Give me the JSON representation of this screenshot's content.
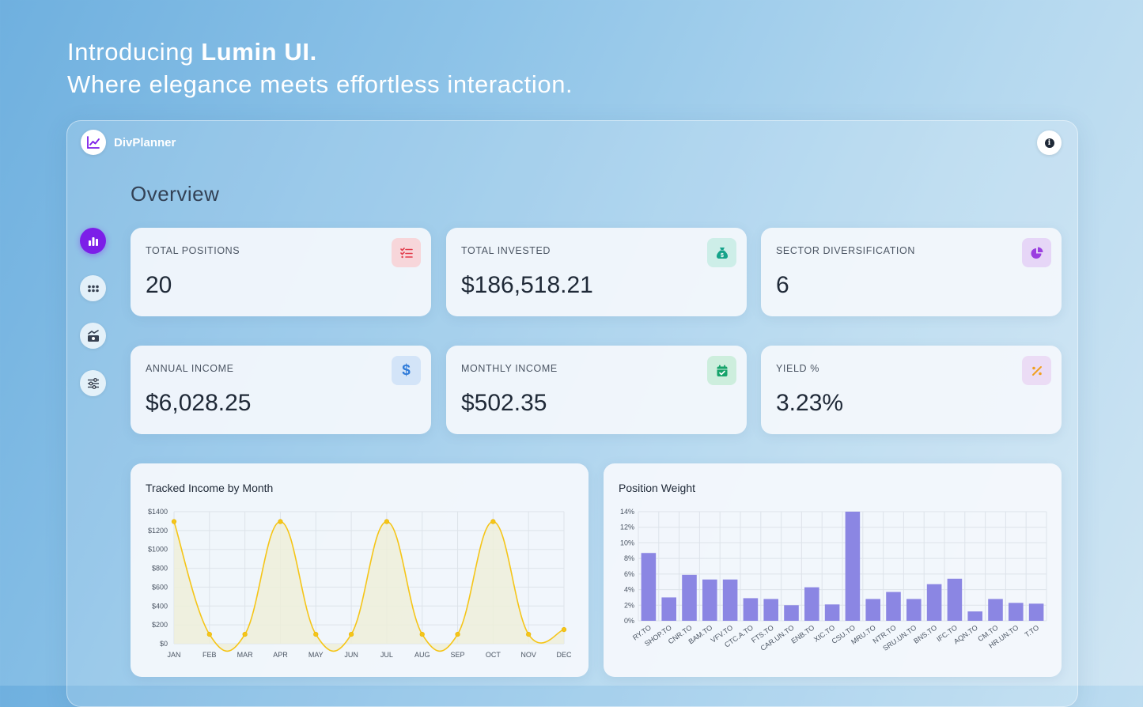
{
  "hero": {
    "line1_prefix": "Introducing ",
    "line1_brand": "Lumin UI.",
    "line2": "Where elegance meets effortless interaction."
  },
  "app": {
    "name": "DivPlanner",
    "logo_icon": "line-chart-icon",
    "info_icon": "info-icon"
  },
  "nav": [
    {
      "icon": "bar-chart-icon",
      "active": true
    },
    {
      "icon": "grid-dots-icon",
      "active": false
    },
    {
      "icon": "money-growth-icon",
      "active": false
    },
    {
      "icon": "sliders-icon",
      "active": false
    }
  ],
  "page_title": "Overview",
  "stats": [
    {
      "label": "TOTAL POSITIONS",
      "value": "20",
      "icon": "checklist-icon",
      "icon_color": "#e23b4a",
      "icon_bg": "#f7d6da"
    },
    {
      "label": "TOTAL INVESTED",
      "value": "$186,518.21",
      "icon": "money-bag-icon",
      "icon_color": "#15a38a",
      "icon_bg": "#cdeee8"
    },
    {
      "label": "SECTOR DIVERSIFICATION",
      "value": "6",
      "icon": "pie-chart-icon",
      "icon_color": "#9b3fe0",
      "icon_bg": "#e6d6f7"
    },
    {
      "label": "ANNUAL INCOME",
      "value": "$6,028.25",
      "icon": "dollar-icon",
      "icon_color": "#2f7bd9",
      "icon_bg": "#d3e4f8"
    },
    {
      "label": "MONTHLY INCOME",
      "value": "$502.35",
      "icon": "calendar-check-icon",
      "icon_color": "#16a36a",
      "icon_bg": "#cdeedd"
    },
    {
      "label": "YIELD %",
      "value": "3.23%",
      "icon": "percent-icon",
      "icon_color": "#f0a020",
      "icon_bg": "#ebdcf5"
    }
  ],
  "income_chart": {
    "title": "Tracked Income by Month",
    "chart_data": {
      "type": "line",
      "categories": [
        "JAN",
        "FEB",
        "MAR",
        "APR",
        "MAY",
        "JUN",
        "JUL",
        "AUG",
        "SEP",
        "OCT",
        "NOV",
        "DEC"
      ],
      "values": [
        1295,
        100,
        100,
        1295,
        100,
        100,
        1295,
        100,
        100,
        1295,
        100,
        150
      ],
      "yticks": [
        "$0",
        "$200",
        "$400",
        "$600",
        "$800",
        "$1000",
        "$1200",
        "$1400"
      ],
      "ylim": [
        0,
        1400
      ],
      "color": "#f5c518",
      "fill": "#efefd8",
      "grid": true
    }
  },
  "weight_chart": {
    "title": "Position Weight",
    "chart_data": {
      "type": "bar",
      "categories": [
        "RY.TO",
        "SHOP.TO",
        "CNR.TO",
        "BAM.TO",
        "VFV.TO",
        "CTC.A.TO",
        "FTS.TO",
        "CAR.UN.TO",
        "ENB.TO",
        "XIC.TO",
        "CSU.TO",
        "MRU.TO",
        "NTR.TO",
        "SRU.UN.TO",
        "BNS.TO",
        "IFC.TO",
        "AQN.TO",
        "CM.TO",
        "HR.UN.TO",
        "T.TO"
      ],
      "values": [
        8.7,
        3.0,
        5.9,
        5.3,
        5.3,
        2.9,
        2.8,
        2.0,
        4.3,
        2.1,
        14.0,
        2.8,
        3.7,
        2.8,
        4.7,
        5.4,
        1.2,
        2.8,
        2.3,
        2.2
      ],
      "yticks": [
        "0%",
        "2%",
        "4%",
        "6%",
        "8%",
        "10%",
        "12%",
        "14%"
      ],
      "ylim": [
        0,
        14
      ],
      "color": "#8b86e3",
      "grid": true
    }
  }
}
